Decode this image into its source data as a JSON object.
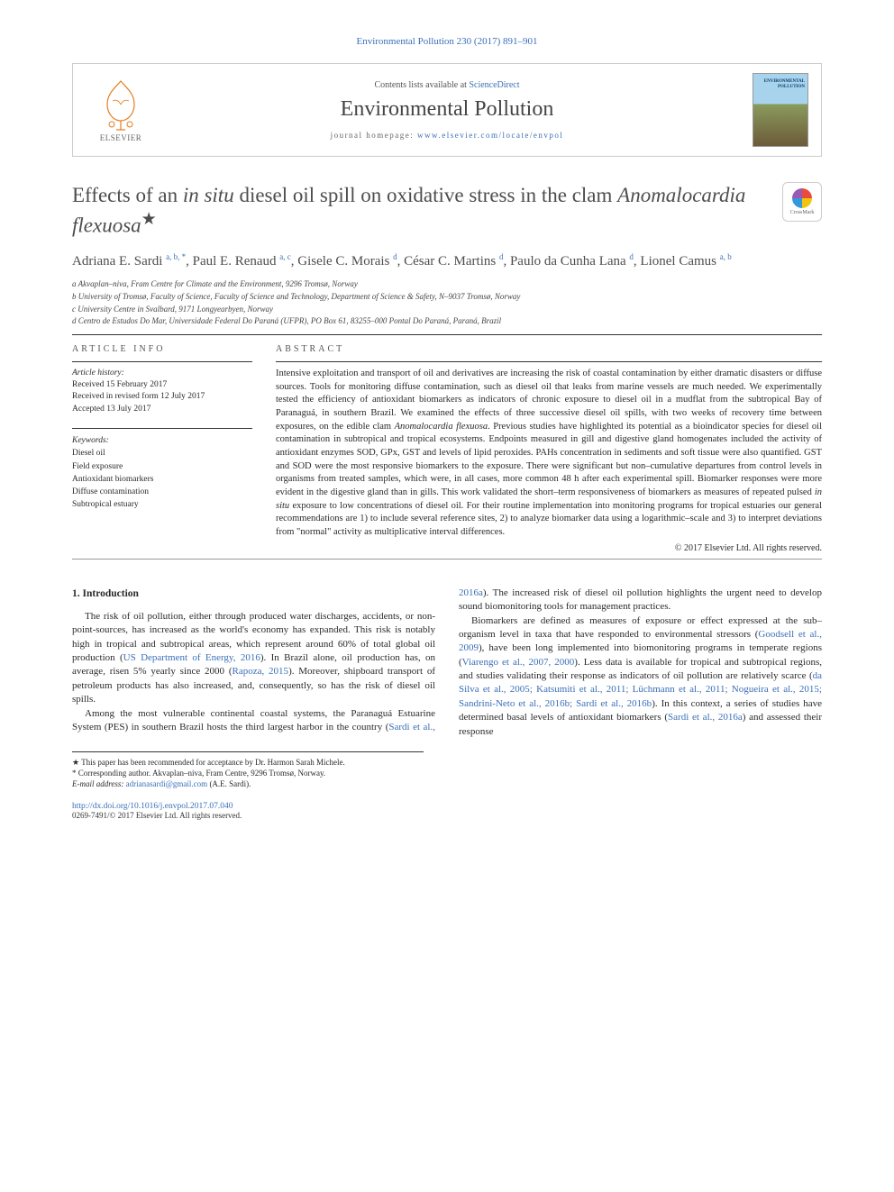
{
  "top_citation": "Environmental Pollution 230 (2017) 891–901",
  "header": {
    "contents_prefix": "Contents lists available at ",
    "contents_link": "ScienceDirect",
    "journal": "Environmental Pollution",
    "homepage_prefix": "journal homepage: ",
    "homepage_link": "www.elsevier.com/locate/envpol",
    "publisher_word": "ELSEVIER",
    "cover_label": "ENVIRONMENTAL\nPOLLUTION"
  },
  "title_html": "Effects of an <em>in situ</em> diesel oil spill on oxidative stress in the clam <em>Anomalocardia flexuosa</em><sup>★</sup>",
  "crossmark_label": "CrossMark",
  "authors_html": "Adriana E. Sardi <sup>a, b, *</sup>, Paul E. Renaud <sup>a, c</sup>, Gisele C. Morais <sup>d</sup>, César C. Martins <sup>d</sup>, Paulo da Cunha Lana <sup>d</sup>, Lionel Camus <sup>a, b</sup>",
  "affiliations": [
    "a Akvaplan–niva, Fram Centre for Climate and the Environment, 9296 Tromsø, Norway",
    "b University of Tromsø, Faculty of Science, Faculty of Science and Technology, Department of Science & Safety, N–9037 Tromsø, Norway",
    "c University Centre in Svalbard, 9171 Longyearbyen, Norway",
    "d Centro de Estudos Do Mar, Universidade Federal Do Paraná (UFPR), PO Box 61, 83255–000 Pontal Do Paraná, Paraná, Brazil"
  ],
  "article_info": {
    "head": "ARTICLE INFO",
    "history_label": "Article history:",
    "received": "Received 15 February 2017",
    "revised": "Received in revised form 12 July 2017",
    "accepted": "Accepted 13 July 2017",
    "keywords_head": "Keywords:",
    "keywords": [
      "Diesel oil",
      "Field exposure",
      "Antioxidant biomarkers",
      "Diffuse contamination",
      "Subtropical estuary"
    ]
  },
  "abstract": {
    "head": "ABSTRACT",
    "text_html": "Intensive exploitation and transport of oil and derivatives are increasing the risk of coastal contamination by either dramatic disasters or diffuse sources. Tools for monitoring diffuse contamination, such as diesel oil that leaks from marine vessels are much needed. We experimentally tested the efficiency of antioxidant biomarkers as indicators of chronic exposure to diesel oil in a mudflat from the subtropical Bay of Paranaguá, in southern Brazil. We examined the effects of three successive diesel oil spills, with two weeks of recovery time between exposures, on the edible clam <em>Anomalocardia flexuosa</em>. Previous studies have highlighted its potential as a bioindicator species for diesel oil contamination in subtropical and tropical ecosystems. Endpoints measured in gill and digestive gland homogenates included the activity of antioxidant enzymes SOD, GPx, GST and levels of lipid peroxides. PAHs concentration in sediments and soft tissue were also quantified. GST and SOD were the most responsive biomarkers to the exposure. There were significant but non–cumulative departures from control levels in organisms from treated samples, which were, in all cases, more common 48 h after each experimental spill. Biomarker responses were more evident in the digestive gland than in gills. This work validated the short–term responsiveness of biomarkers as measures of repeated pulsed <em>in situ</em> exposure to low concentrations of diesel oil. For their routine implementation into monitoring programs for tropical estuaries our general recommendations are 1) to include several reference sites, 2) to analyze biomarker data using a logarithmic–scale and 3) to interpret deviations from \"normal\" activity as multiplicative interval differences.",
    "copyright": "© 2017 Elsevier Ltd. All rights reserved."
  },
  "intro": {
    "head": "1. Introduction",
    "p1_html": "The risk of oil pollution, either through produced water discharges, accidents, or non-point-sources, has increased as the world's economy has expanded. This risk is notably high in tropical and subtropical areas, which represent around 60% of total global oil production (<a class='ref' data-name='ref-link' data-interactable='true'>US Department of Energy, 2016</a>). In Brazil alone, oil production has, on average, risen 5% yearly since 2000 (<a class='ref' data-name='ref-link' data-interactable='true'>Rapoza, 2015</a>). Moreover, shipboard transport of petroleum products has also increased, and, consequently, so has the risk of diesel oil spills.",
    "p2_html": "Among the most vulnerable continental coastal systems, the Paranaguá Estuarine System (PES) in southern Brazil hosts the third largest harbor in the country (<a class='ref' data-name='ref-link' data-interactable='true'>Sardi et al., 2016a</a>). The increased risk of diesel oil pollution highlights the urgent need to develop sound biomonitoring tools for management practices.",
    "p3_html": "Biomarkers are defined as measures of exposure or effect expressed at the sub–organism level in taxa that have responded to environmental stressors (<a class='ref' data-name='ref-link' data-interactable='true'>Goodsell et al., 2009</a>), have been long implemented into biomonitoring programs in temperate regions (<a class='ref' data-name='ref-link' data-interactable='true'>Viarengo et al., 2007, 2000</a>). Less data is available for tropical and subtropical regions, and studies validating their response as indicators of oil pollution are relatively scarce (<a class='ref' data-name='ref-link' data-interactable='true'>da Silva et al., 2005; Katsumiti et al., 2011; Lüchmann et al., 2011; Nogueira et al., 2015; Sandrini-Neto et al., 2016b; Sardi et al., 2016b</a>). In this context, a series of studies have determined basal levels of antioxidant biomarkers (<a class='ref' data-name='ref-link' data-interactable='true'>Sardi et al., 2016a</a>) and assessed their response"
  },
  "footnotes": {
    "star": "★ This paper has been recommended for acceptance by Dr. Harmon Sarah Michele.",
    "corr": "* Corresponding author. Akvaplan–niva, Fram Centre, 9296 Tromsø, Norway.",
    "email_label": "E-mail address: ",
    "email": "adrianasardi@gmail.com",
    "email_suffix": " (A.E. Sardi)."
  },
  "doi": {
    "link": "http://dx.doi.org/10.1016/j.envpol.2017.07.040",
    "rights": "0269-7491/© 2017 Elsevier Ltd. All rights reserved."
  },
  "colors": {
    "link": "#3a6fb7",
    "text": "#2a2a2a",
    "rule": "#333333",
    "border": "#cccccc"
  }
}
